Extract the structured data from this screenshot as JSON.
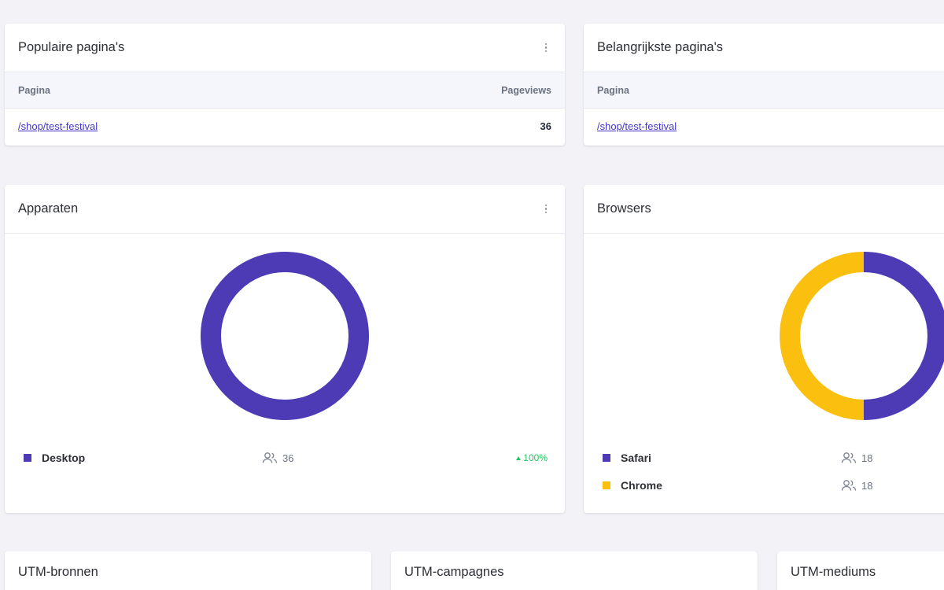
{
  "colors": {
    "purple": "#4c3bb4",
    "yellow": "#fbbf0f",
    "green": "#22c55e"
  },
  "popular_pages": {
    "title": "Populaire pagina's",
    "col_page": "Pagina",
    "col_views": "Pageviews",
    "rows": [
      {
        "page": "/shop/test-festival",
        "views": "36"
      }
    ]
  },
  "top_pages": {
    "title": "Belangrijkste pagina's",
    "col_page": "Pagina",
    "rows": [
      {
        "page": "/shop/test-festival"
      }
    ]
  },
  "devices": {
    "title": "Apparaten",
    "items": [
      {
        "label": "Desktop",
        "count": "36",
        "percent": "100%"
      }
    ]
  },
  "browsers": {
    "title": "Browsers",
    "items": [
      {
        "label": "Safari",
        "count": "18"
      },
      {
        "label": "Chrome",
        "count": "18"
      }
    ]
  },
  "utm": {
    "sources_title": "UTM-bronnen",
    "campaigns_title": "UTM-campagnes",
    "mediums_title": "UTM-mediums"
  },
  "chart_data": [
    {
      "type": "pie",
      "categories": [
        "Desktop"
      ],
      "values": [
        36
      ]
    },
    {
      "type": "pie",
      "categories": [
        "Safari",
        "Chrome"
      ],
      "values": [
        18,
        18
      ]
    }
  ]
}
